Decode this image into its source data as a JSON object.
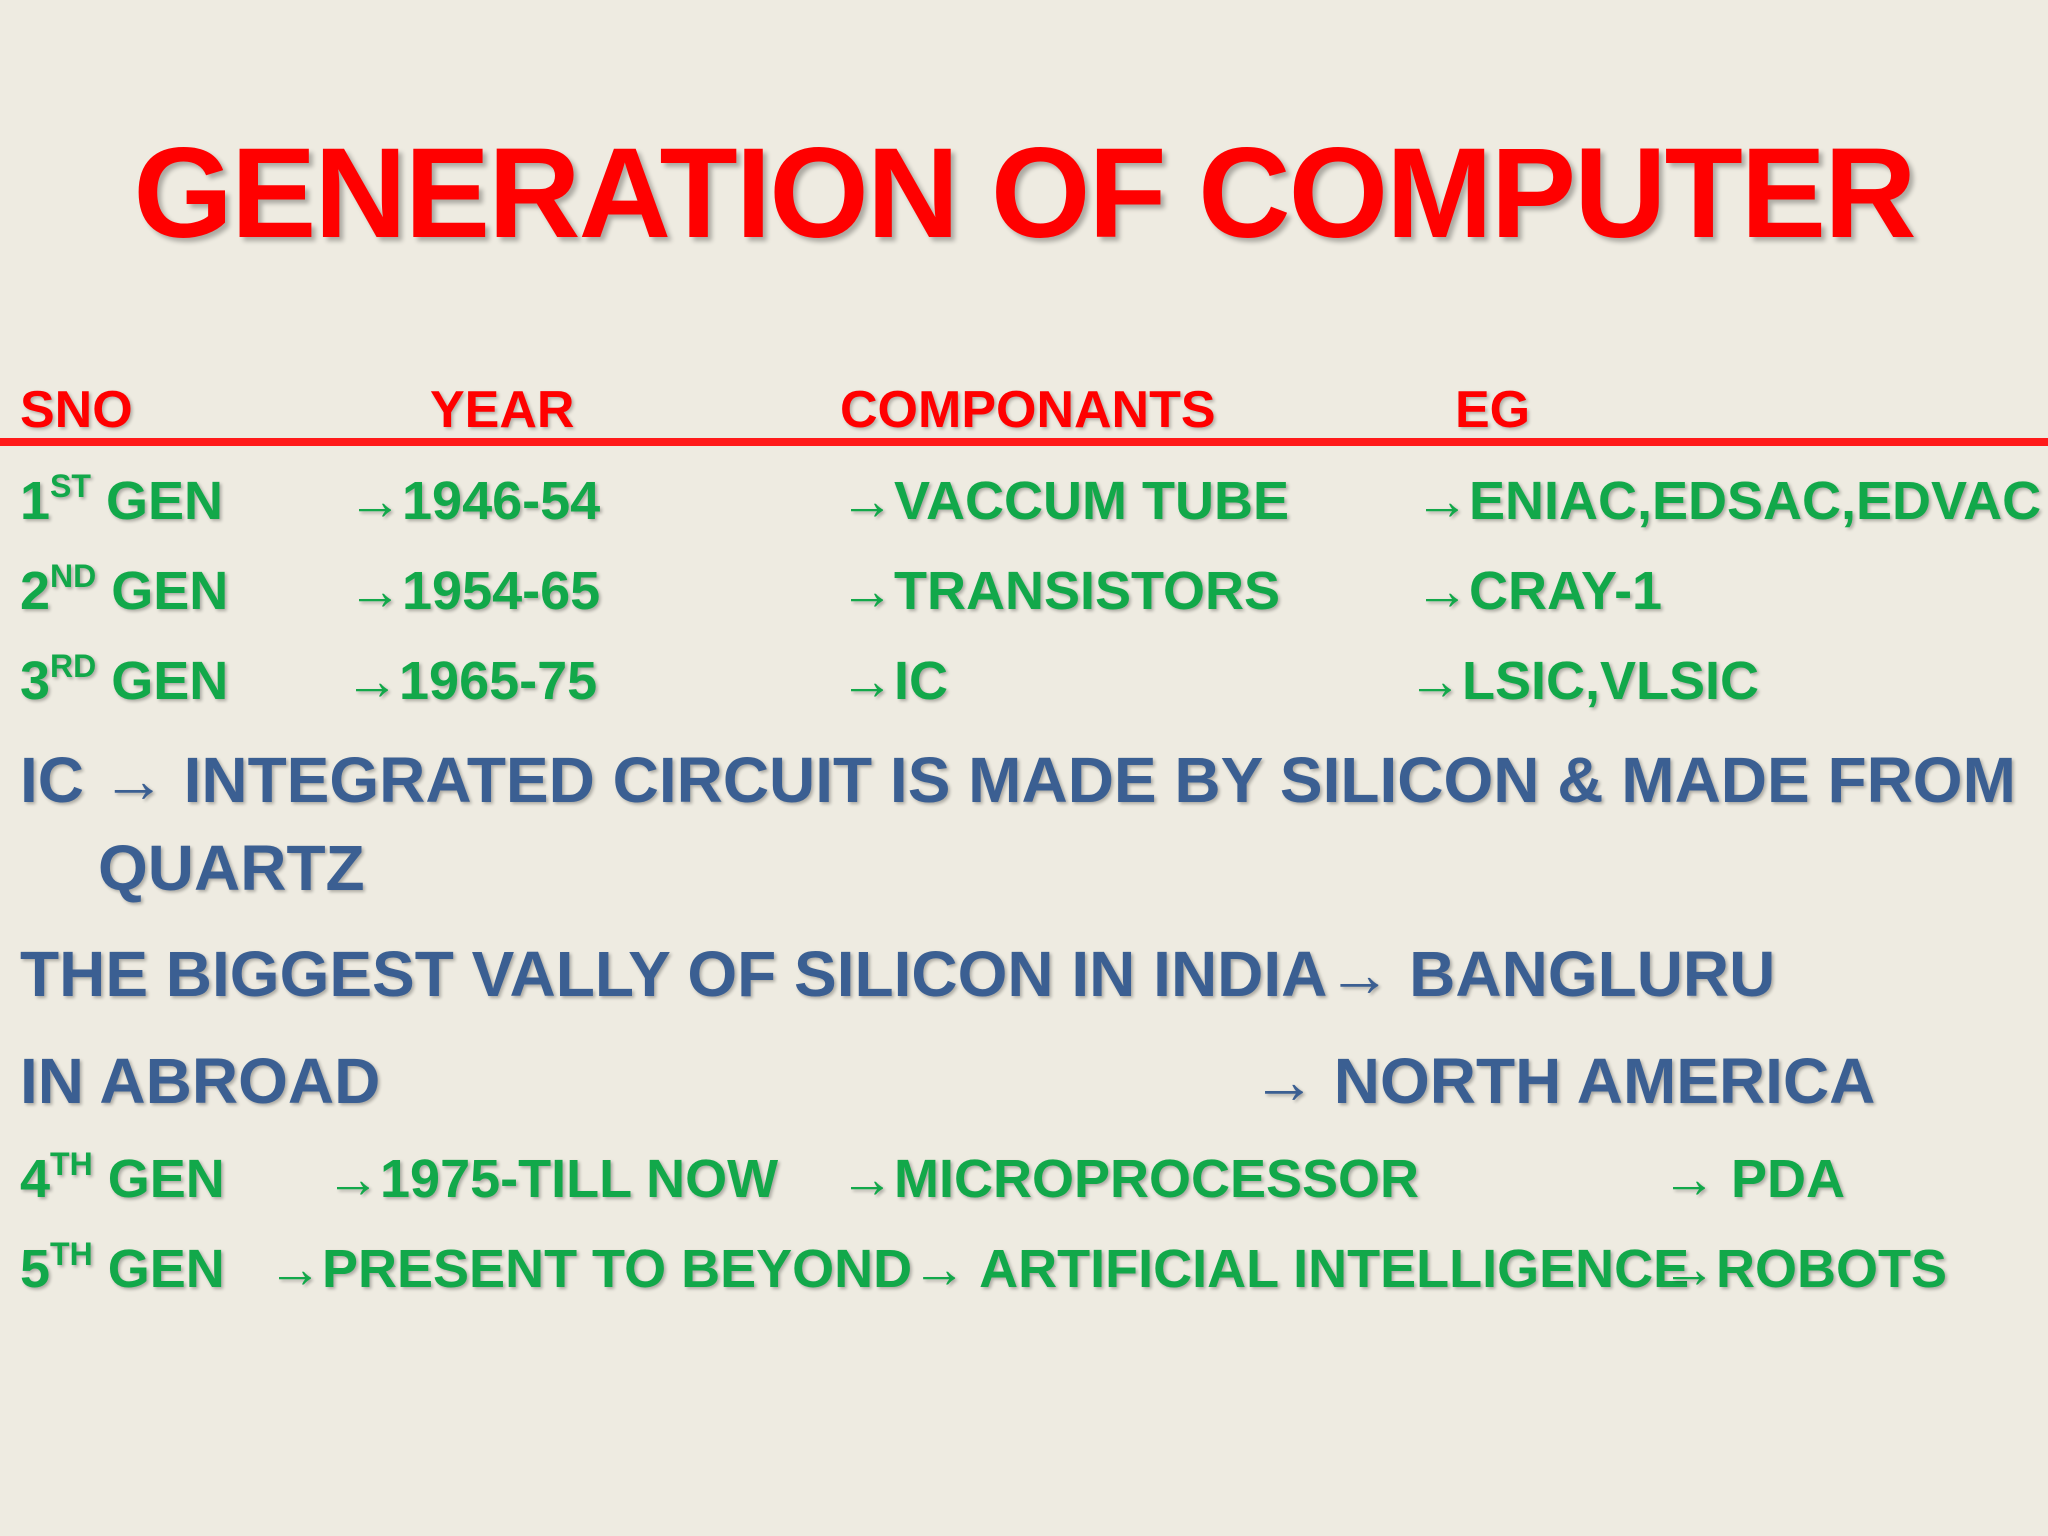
{
  "title": "GENERATION OF COMPUTER",
  "header": {
    "sno": "SNO",
    "year": "YEAR",
    "components": "COMPONANTS",
    "eg": "EG"
  },
  "arrow": "→",
  "generations": [
    {
      "num": "1",
      "suffix": "ST",
      "gen": " GEN",
      "year": "1946-54",
      "component": "VACCUM TUBE",
      "eg": "ENIAC,EDSAC,EDVAC"
    },
    {
      "num": "2",
      "suffix": "ND",
      "gen": " GEN",
      "year": "1954-65",
      "component": "TRANSISTORS",
      "eg": "CRAY-1"
    },
    {
      "num": "3",
      "suffix": "RD",
      "gen": " GEN",
      "year": "1965-75",
      "component": "IC",
      "eg": "LSIC,VLSIC"
    },
    {
      "num": "4",
      "suffix": "TH",
      "gen": " GEN",
      "year": "1975-TILL NOW",
      "component": "MICROPROCESSOR",
      "eg": " PDA"
    },
    {
      "num": "5",
      "suffix": "TH",
      "gen": " GEN",
      "year": "PRESENT TO BEYOND",
      "component": " ARTIFICIAL INTELLIGENCE",
      "eg": "ROBOTS"
    }
  ],
  "notes": {
    "ic_label": "IC",
    "ic_text_line1": " INTEGRATED CIRCUIT IS MADE BY SILICON & MADE FROM",
    "ic_text_line2": "QUARTZ",
    "valley_text": "THE BIGGEST VALLY OF SILICON IN INDIA",
    "valley_answer": " BANGLURU",
    "abroad_text": "IN ABROAD",
    "abroad_answer": " NORTH AMERICA"
  }
}
